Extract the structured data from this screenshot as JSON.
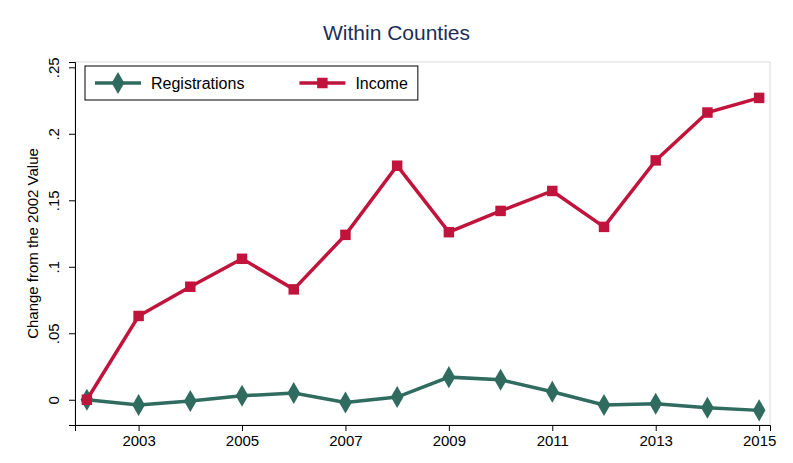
{
  "chart_data": {
    "type": "line",
    "title": "Within Counties",
    "y_label": "Change from the 2002 Value",
    "x": [
      2002,
      2003,
      2004,
      2005,
      2006,
      2007,
      2008,
      2009,
      2010,
      2011,
      2012,
      2013,
      2014,
      2015
    ],
    "series": [
      {
        "name": "Registrations",
        "color": "#2f6b5f",
        "marker": "diamond",
        "line_style": "solid",
        "values": [
          0,
          -0.004,
          -0.001,
          0.003,
          0.005,
          -0.002,
          0.002,
          0.017,
          0.015,
          0.006,
          -0.004,
          -0.003,
          -0.006,
          -0.008
        ]
      },
      {
        "name": "Income",
        "color": "#c0143c",
        "marker": "square",
        "line_style": "solid",
        "values": [
          0,
          0.063,
          0.085,
          0.106,
          0.083,
          0.124,
          0.176,
          0.126,
          0.142,
          0.157,
          0.13,
          0.18,
          0.216,
          0.227
        ]
      }
    ],
    "xlim": [
      2001.77,
      2015.21
    ],
    "xticks": [
      2003,
      2005,
      2007,
      2009,
      2011,
      2013,
      2015
    ],
    "ylim": [
      -0.019,
      0.254
    ],
    "yticks": [
      0,
      {
        "value": 0.05,
        "label": ".05"
      },
      {
        "value": 0.1,
        "label": ".1"
      },
      {
        "value": 0.15,
        "label": ".15"
      },
      {
        "value": 0.2,
        "label": ".2"
      },
      {
        "value": 0.25,
        "label": ".25"
      }
    ],
    "grid": false,
    "legend": "upper left"
  }
}
